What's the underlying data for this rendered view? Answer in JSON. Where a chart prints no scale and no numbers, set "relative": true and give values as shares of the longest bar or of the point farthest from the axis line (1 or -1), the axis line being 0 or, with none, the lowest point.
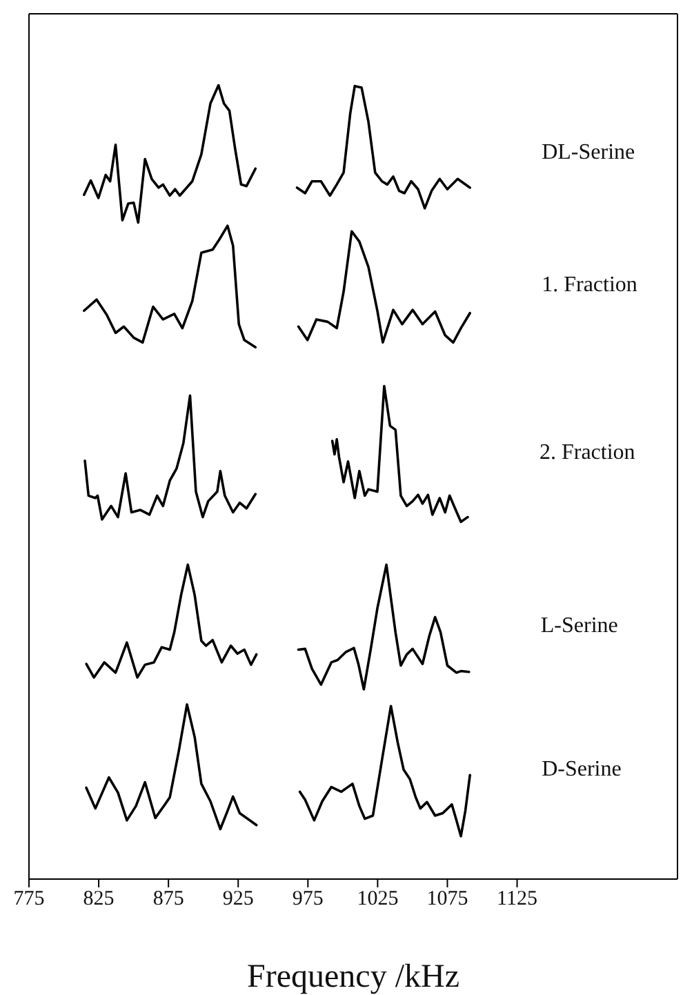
{
  "chart_data": {
    "type": "line",
    "xlabel": "Frequency /kHz",
    "xlim": [
      775,
      1240
    ],
    "xticks": [
      775,
      825,
      875,
      925,
      975,
      1025,
      1075,
      1125
    ],
    "relative": true,
    "marker": "none",
    "series": [
      {
        "name": "DL-Serine",
        "color": "#000000",
        "x": [
          814.5,
          819.3,
          824.8,
          830.0,
          833.2,
          837.1,
          842.0,
          846.2,
          850.1,
          853.3,
          858.2,
          863.0,
          867.9,
          871.1,
          876.0,
          879.8,
          883.1,
          892.1,
          898.6,
          905.1,
          910.9,
          914.8,
          918.7,
          922.9,
          927.1,
          931.0,
          937.4,
          950,
          967.2,
          973.0,
          977.9,
          984.4,
          990.8,
          995.7,
          1000.6,
          1005.4,
          1008.6,
          1013.5,
          1018.4,
          1023.2,
          1028.1,
          1031.9,
          1036.2,
          1040.4,
          1044.2,
          1049.1,
          1054.0,
          1058.8,
          1063.7,
          1069.5,
          1075.0,
          1082.4,
          1091.2
        ],
        "values": [
          0.862,
          0.88,
          0.858,
          0.887,
          0.879,
          0.925,
          0.83,
          0.851,
          0.852,
          0.827,
          0.907,
          0.882,
          0.871,
          0.875,
          0.861,
          0.869,
          0.861,
          0.879,
          0.913,
          0.977,
          1.0,
          0.977,
          0.968,
          0.919,
          0.875,
          0.873,
          0.895,
          null,
          0.871,
          0.864,
          0.879,
          0.879,
          0.861,
          0.875,
          0.89,
          0.965,
          0.999,
          0.997,
          0.954,
          0.89,
          0.879,
          0.875,
          0.885,
          0.867,
          0.864,
          0.879,
          0.869,
          0.845,
          0.867,
          0.882,
          0.869,
          0.882,
          0.871
        ]
      },
      {
        "name": "1. Fraction",
        "color": "#000000",
        "x": [
          814.5,
          823.5,
          830.7,
          837.1,
          843.0,
          850.1,
          856.5,
          864.0,
          871.1,
          879.2,
          885.0,
          892.1,
          898.6,
          906.7,
          911.6,
          917.4,
          921.3,
          925.5,
          929.4,
          937.4,
          950,
          968.2,
          974.7,
          981.1,
          989.2,
          995.7,
          1000.6,
          1006.4,
          1011.9,
          1018.4,
          1024.8,
          1028.7,
          1036.2,
          1042.6,
          1050.1,
          1057.2,
          1066.2,
          1073.4,
          1079.2,
          1084.7,
          1091.2
        ],
        "values": [
          0.716,
          0.73,
          0.711,
          0.688,
          0.696,
          0.682,
          0.676,
          0.721,
          0.705,
          0.712,
          0.694,
          0.728,
          0.789,
          0.793,
          0.806,
          0.823,
          0.798,
          0.699,
          0.679,
          0.67,
          null,
          0.696,
          0.679,
          0.705,
          0.702,
          0.694,
          0.74,
          0.816,
          0.803,
          0.771,
          0.716,
          0.676,
          0.717,
          0.699,
          0.717,
          0.699,
          0.715,
          0.685,
          0.676,
          0.694,
          0.713
        ]
      },
      {
        "name": "2. Fraction",
        "color": "#000000",
        "x": [
          815.1,
          817.7,
          822.6,
          824.2,
          827.4,
          833.9,
          838.8,
          844.3,
          848.5,
          854.9,
          861.4,
          866.9,
          871.1,
          876.0,
          880.8,
          885.7,
          890.5,
          894.7,
          899.6,
          903.5,
          910.0,
          912.2,
          915.4,
          921.3,
          926.1,
          931.0,
          937.4,
          960,
          992.5,
          994.1,
          995.7,
          997.3,
          1000.6,
          1003.8,
          1008.6,
          1011.9,
          1015.8,
          1018.4,
          1024.8,
          1029.7,
          1033.9,
          1037.8,
          1041.6,
          1045.9,
          1050.1,
          1054.0,
          1057.2,
          1061.1,
          1064.3,
          1069.5,
          1073.4,
          1076.6,
          1080.5,
          1084.7,
          1089.6
        ],
        "values": [
          0.527,
          0.483,
          0.48,
          0.483,
          0.453,
          0.47,
          0.456,
          0.511,
          0.462,
          0.465,
          0.459,
          0.483,
          0.47,
          0.502,
          0.517,
          0.549,
          0.609,
          0.488,
          0.456,
          0.476,
          0.488,
          0.514,
          0.483,
          0.462,
          0.474,
          0.467,
          0.485,
          null,
          0.552,
          0.535,
          0.554,
          0.532,
          0.5,
          0.526,
          0.48,
          0.514,
          0.483,
          0.491,
          0.488,
          0.621,
          0.571,
          0.566,
          0.483,
          0.47,
          0.476,
          0.484,
          0.473,
          0.484,
          0.459,
          0.48,
          0.462,
          0.483,
          0.467,
          0.45,
          0.456
        ]
      },
      {
        "name": "L-Serine",
        "color": "#000000",
        "x": [
          816.1,
          821.6,
          829.0,
          837.1,
          845.2,
          852.7,
          858.2,
          864.6,
          870.1,
          876.0,
          879.2,
          884.1,
          888.9,
          893.8,
          898.6,
          901.9,
          906.7,
          913.2,
          919.7,
          924.5,
          929.4,
          934.2,
          938.1,
          950,
          968.2,
          973.0,
          977.9,
          984.4,
          991.8,
          996.3,
          1002.2,
          1008.0,
          1011.2,
          1015.1,
          1020.0,
          1024.8,
          1031.3,
          1037.8,
          1041.6,
          1045.9,
          1050.1,
          1057.2,
          1062.0,
          1066.2,
          1070.1,
          1075.0,
          1081.5,
          1084.7,
          1090.5
        ],
        "values": [
          0.271,
          0.254,
          0.273,
          0.26,
          0.298,
          0.254,
          0.27,
          0.273,
          0.292,
          0.289,
          0.311,
          0.358,
          0.396,
          0.358,
          0.3,
          0.294,
          0.301,
          0.273,
          0.294,
          0.284,
          0.289,
          0.27,
          0.283,
          null,
          0.289,
          0.29,
          0.265,
          0.245,
          0.273,
          0.276,
          0.286,
          0.291,
          0.271,
          0.239,
          0.289,
          0.341,
          0.396,
          0.311,
          0.269,
          0.283,
          0.29,
          0.271,
          0.306,
          0.33,
          0.311,
          0.269,
          0.26,
          0.262,
          0.261
        ]
      },
      {
        "name": "D-Serine",
        "color": "#000000",
        "x": [
          816.1,
          822.6,
          832.3,
          838.8,
          845.2,
          851.7,
          858.2,
          865.6,
          872.1,
          876.0,
          882.4,
          888.3,
          893.8,
          898.6,
          905.1,
          912.2,
          917.4,
          921.3,
          926.1,
          931.0,
          938.1,
          950,
          969.2,
          973.0,
          979.5,
          985.3,
          991.8,
          998.9,
          1007.0,
          1011.9,
          1015.8,
          1021.6,
          1028.1,
          1034.5,
          1039.4,
          1043.6,
          1048.1,
          1052.3,
          1055.6,
          1060.4,
          1066.2,
          1071.7,
          1078.2,
          1081.5,
          1084.7,
          1087.9,
          1091.2
        ],
        "values": [
          0.115,
          0.089,
          0.128,
          0.109,
          0.074,
          0.092,
          0.122,
          0.077,
          0.093,
          0.103,
          0.161,
          0.22,
          0.179,
          0.12,
          0.098,
          0.063,
          0.086,
          0.104,
          0.083,
          0.077,
          0.068,
          null,
          0.11,
          0.1,
          0.074,
          0.098,
          0.116,
          0.11,
          0.12,
          0.092,
          0.076,
          0.08,
          0.15,
          0.218,
          0.172,
          0.138,
          0.126,
          0.103,
          0.089,
          0.097,
          0.08,
          0.083,
          0.094,
          0.074,
          0.054,
          0.086,
          0.131
        ]
      }
    ]
  }
}
